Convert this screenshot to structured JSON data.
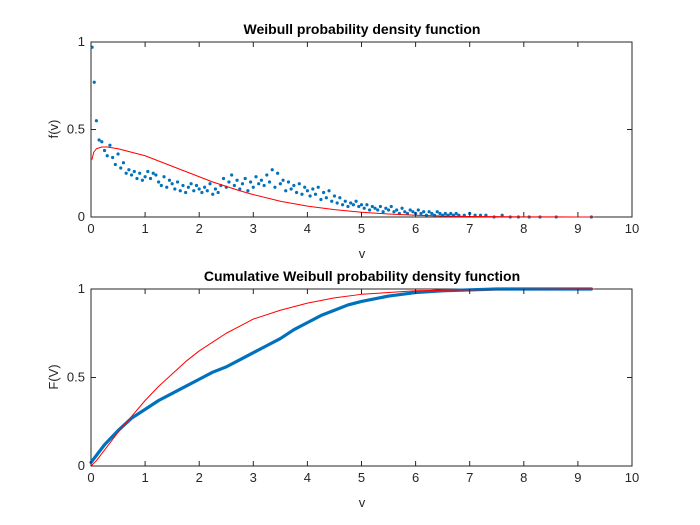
{
  "chart_data": [
    {
      "type": "scatter",
      "title": "Weibull probability density function",
      "xlabel": "v",
      "ylabel": "f(v)",
      "xlim": [
        0,
        10
      ],
      "ylim": [
        0,
        1
      ],
      "xticks": [
        "0",
        "1",
        "2",
        "3",
        "4",
        "5",
        "6",
        "7",
        "8",
        "9",
        "10"
      ],
      "yticks": [
        "0",
        "0.5",
        "1"
      ],
      "grid": false,
      "series": [
        {
          "kind": "scatter",
          "color": "#0072BD",
          "points": [
            [
              0.02,
              0.97
            ],
            [
              0.06,
              0.77
            ],
            [
              0.1,
              0.55
            ],
            [
              0.15,
              0.44
            ],
            [
              0.2,
              0.43
            ],
            [
              0.25,
              0.38
            ],
            [
              0.3,
              0.35
            ],
            [
              0.35,
              0.41
            ],
            [
              0.4,
              0.34
            ],
            [
              0.45,
              0.3
            ],
            [
              0.5,
              0.36
            ],
            [
              0.55,
              0.28
            ],
            [
              0.6,
              0.31
            ],
            [
              0.65,
              0.25
            ],
            [
              0.7,
              0.27
            ],
            [
              0.75,
              0.24
            ],
            [
              0.8,
              0.26
            ],
            [
              0.85,
              0.22
            ],
            [
              0.9,
              0.25
            ],
            [
              0.95,
              0.21
            ],
            [
              1.0,
              0.23
            ],
            [
              1.05,
              0.26
            ],
            [
              1.1,
              0.22
            ],
            [
              1.15,
              0.25
            ],
            [
              1.2,
              0.24
            ],
            [
              1.25,
              0.2
            ],
            [
              1.3,
              0.18
            ],
            [
              1.35,
              0.23
            ],
            [
              1.4,
              0.17
            ],
            [
              1.45,
              0.21
            ],
            [
              1.5,
              0.19
            ],
            [
              1.55,
              0.16
            ],
            [
              1.6,
              0.2
            ],
            [
              1.65,
              0.15
            ],
            [
              1.7,
              0.18
            ],
            [
              1.75,
              0.14
            ],
            [
              1.8,
              0.17
            ],
            [
              1.85,
              0.19
            ],
            [
              1.9,
              0.15
            ],
            [
              1.95,
              0.18
            ],
            [
              2.0,
              0.16
            ],
            [
              2.05,
              0.14
            ],
            [
              2.1,
              0.17
            ],
            [
              2.15,
              0.15
            ],
            [
              2.2,
              0.19
            ],
            [
              2.25,
              0.13
            ],
            [
              2.3,
              0.16
            ],
            [
              2.35,
              0.14
            ],
            [
              2.4,
              0.18
            ],
            [
              2.45,
              0.22
            ],
            [
              2.5,
              0.17
            ],
            [
              2.55,
              0.2
            ],
            [
              2.6,
              0.24
            ],
            [
              2.65,
              0.18
            ],
            [
              2.7,
              0.21
            ],
            [
              2.75,
              0.16
            ],
            [
              2.8,
              0.19
            ],
            [
              2.85,
              0.22
            ],
            [
              2.9,
              0.15
            ],
            [
              2.95,
              0.2
            ],
            [
              3.0,
              0.17
            ],
            [
              3.05,
              0.23
            ],
            [
              3.1,
              0.19
            ],
            [
              3.15,
              0.21
            ],
            [
              3.2,
              0.18
            ],
            [
              3.25,
              0.24
            ],
            [
              3.3,
              0.2
            ],
            [
              3.35,
              0.27
            ],
            [
              3.4,
              0.17
            ],
            [
              3.45,
              0.25
            ],
            [
              3.5,
              0.19
            ],
            [
              3.55,
              0.21
            ],
            [
              3.6,
              0.15
            ],
            [
              3.65,
              0.2
            ],
            [
              3.7,
              0.16
            ],
            [
              3.75,
              0.18
            ],
            [
              3.8,
              0.14
            ],
            [
              3.85,
              0.19
            ],
            [
              3.9,
              0.13
            ],
            [
              3.95,
              0.17
            ],
            [
              4.0,
              0.15
            ],
            [
              4.05,
              0.12
            ],
            [
              4.1,
              0.16
            ],
            [
              4.15,
              0.13
            ],
            [
              4.2,
              0.17
            ],
            [
              4.25,
              0.1
            ],
            [
              4.3,
              0.14
            ],
            [
              4.35,
              0.11
            ],
            [
              4.4,
              0.15
            ],
            [
              4.45,
              0.09
            ],
            [
              4.5,
              0.12
            ],
            [
              4.55,
              0.08
            ],
            [
              4.6,
              0.11
            ],
            [
              4.65,
              0.07
            ],
            [
              4.7,
              0.09
            ],
            [
              4.75,
              0.06
            ],
            [
              4.8,
              0.08
            ],
            [
              4.85,
              0.07
            ],
            [
              4.9,
              0.09
            ],
            [
              4.95,
              0.06
            ],
            [
              5.0,
              0.07
            ],
            [
              5.05,
              0.05
            ],
            [
              5.1,
              0.07
            ],
            [
              5.15,
              0.04
            ],
            [
              5.2,
              0.06
            ],
            [
              5.25,
              0.05
            ],
            [
              5.3,
              0.04
            ],
            [
              5.35,
              0.06
            ],
            [
              5.4,
              0.03
            ],
            [
              5.45,
              0.05
            ],
            [
              5.5,
              0.04
            ],
            [
              5.55,
              0.06
            ],
            [
              5.6,
              0.03
            ],
            [
              5.65,
              0.04
            ],
            [
              5.7,
              0.02
            ],
            [
              5.75,
              0.05
            ],
            [
              5.8,
              0.03
            ],
            [
              5.85,
              0.02
            ],
            [
              5.9,
              0.04
            ],
            [
              5.95,
              0.03
            ],
            [
              6.0,
              0.02
            ],
            [
              6.05,
              0.04
            ],
            [
              6.1,
              0.02
            ],
            [
              6.15,
              0.03
            ],
            [
              6.2,
              0.01
            ],
            [
              6.25,
              0.03
            ],
            [
              6.3,
              0.02
            ],
            [
              6.35,
              0.01
            ],
            [
              6.4,
              0.03
            ],
            [
              6.45,
              0.02
            ],
            [
              6.5,
              0.01
            ],
            [
              6.55,
              0.02
            ],
            [
              6.6,
              0.01
            ],
            [
              6.65,
              0.02
            ],
            [
              6.7,
              0.01
            ],
            [
              6.75,
              0.02
            ],
            [
              6.8,
              0.01
            ],
            [
              6.9,
              0.01
            ],
            [
              7.0,
              0.02
            ],
            [
              7.1,
              0.01
            ],
            [
              7.2,
              0.01
            ],
            [
              7.3,
              0.01
            ],
            [
              7.45,
              0.0
            ],
            [
              7.6,
              0.01
            ],
            [
              7.75,
              0.0
            ],
            [
              7.9,
              0.0
            ],
            [
              8.1,
              0.0
            ],
            [
              8.3,
              0.0
            ],
            [
              8.6,
              0.0
            ],
            [
              9.25,
              0.0
            ]
          ]
        },
        {
          "kind": "line",
          "color": "#FF0000",
          "points": [
            [
              0.02,
              0.33
            ],
            [
              0.05,
              0.37
            ],
            [
              0.1,
              0.39
            ],
            [
              0.2,
              0.4
            ],
            [
              0.3,
              0.4
            ],
            [
              0.5,
              0.39
            ],
            [
              0.75,
              0.37
            ],
            [
              1.0,
              0.35
            ],
            [
              1.25,
              0.32
            ],
            [
              1.5,
              0.29
            ],
            [
              1.75,
              0.26
            ],
            [
              2.0,
              0.23
            ],
            [
              2.25,
              0.2
            ],
            [
              2.5,
              0.175
            ],
            [
              2.75,
              0.15
            ],
            [
              3.0,
              0.128
            ],
            [
              3.5,
              0.09
            ],
            [
              4.0,
              0.062
            ],
            [
              4.5,
              0.042
            ],
            [
              5.0,
              0.027
            ],
            [
              5.5,
              0.017
            ],
            [
              6.0,
              0.01
            ],
            [
              6.5,
              0.006
            ],
            [
              7.0,
              0.003
            ],
            [
              7.5,
              0.002
            ],
            [
              8.0,
              0.001
            ],
            [
              8.5,
              0.0005
            ],
            [
              9.0,
              0.0002
            ],
            [
              9.3,
              0.0001
            ]
          ]
        }
      ]
    },
    {
      "type": "line",
      "title": "Cumulative Weibull probability density function",
      "xlabel": "v",
      "ylabel": "F(V)",
      "xlim": [
        0,
        10
      ],
      "ylim": [
        0,
        1
      ],
      "xticks": [
        "0",
        "1",
        "2",
        "3",
        "4",
        "5",
        "6",
        "7",
        "8",
        "9",
        "10"
      ],
      "yticks": [
        "0",
        "0.5",
        "1"
      ],
      "grid": false,
      "series": [
        {
          "kind": "thick-line",
          "color": "#0072BD",
          "points": [
            [
              0.0,
              0.02
            ],
            [
              0.1,
              0.06
            ],
            [
              0.25,
              0.12
            ],
            [
              0.5,
              0.2
            ],
            [
              0.75,
              0.27
            ],
            [
              1.0,
              0.32
            ],
            [
              1.25,
              0.37
            ],
            [
              1.5,
              0.41
            ],
            [
              1.75,
              0.45
            ],
            [
              2.0,
              0.49
            ],
            [
              2.25,
              0.53
            ],
            [
              2.5,
              0.56
            ],
            [
              2.75,
              0.6
            ],
            [
              3.0,
              0.64
            ],
            [
              3.25,
              0.68
            ],
            [
              3.5,
              0.72
            ],
            [
              3.75,
              0.77
            ],
            [
              4.0,
              0.81
            ],
            [
              4.25,
              0.85
            ],
            [
              4.5,
              0.88
            ],
            [
              4.75,
              0.91
            ],
            [
              5.0,
              0.93
            ],
            [
              5.5,
              0.96
            ],
            [
              6.0,
              0.98
            ],
            [
              6.5,
              0.99
            ],
            [
              7.0,
              0.995
            ],
            [
              7.5,
              1.0
            ],
            [
              8.0,
              1.0
            ],
            [
              8.5,
              1.0
            ],
            [
              9.25,
              1.0
            ]
          ]
        },
        {
          "kind": "line",
          "color": "#FF0000",
          "points": [
            [
              0.0,
              0.0
            ],
            [
              0.1,
              0.03
            ],
            [
              0.25,
              0.09
            ],
            [
              0.5,
              0.19
            ],
            [
              0.75,
              0.28
            ],
            [
              1.0,
              0.37
            ],
            [
              1.25,
              0.45
            ],
            [
              1.5,
              0.52
            ],
            [
              1.75,
              0.59
            ],
            [
              2.0,
              0.65
            ],
            [
              2.25,
              0.7
            ],
            [
              2.5,
              0.75
            ],
            [
              2.75,
              0.79
            ],
            [
              3.0,
              0.83
            ],
            [
              3.5,
              0.88
            ],
            [
              4.0,
              0.92
            ],
            [
              4.5,
              0.95
            ],
            [
              5.0,
              0.97
            ],
            [
              5.5,
              0.98
            ],
            [
              6.0,
              0.99
            ],
            [
              7.0,
              0.995
            ],
            [
              8.0,
              0.998
            ],
            [
              9.0,
              1.0
            ],
            [
              9.3,
              1.0
            ]
          ]
        }
      ]
    }
  ]
}
